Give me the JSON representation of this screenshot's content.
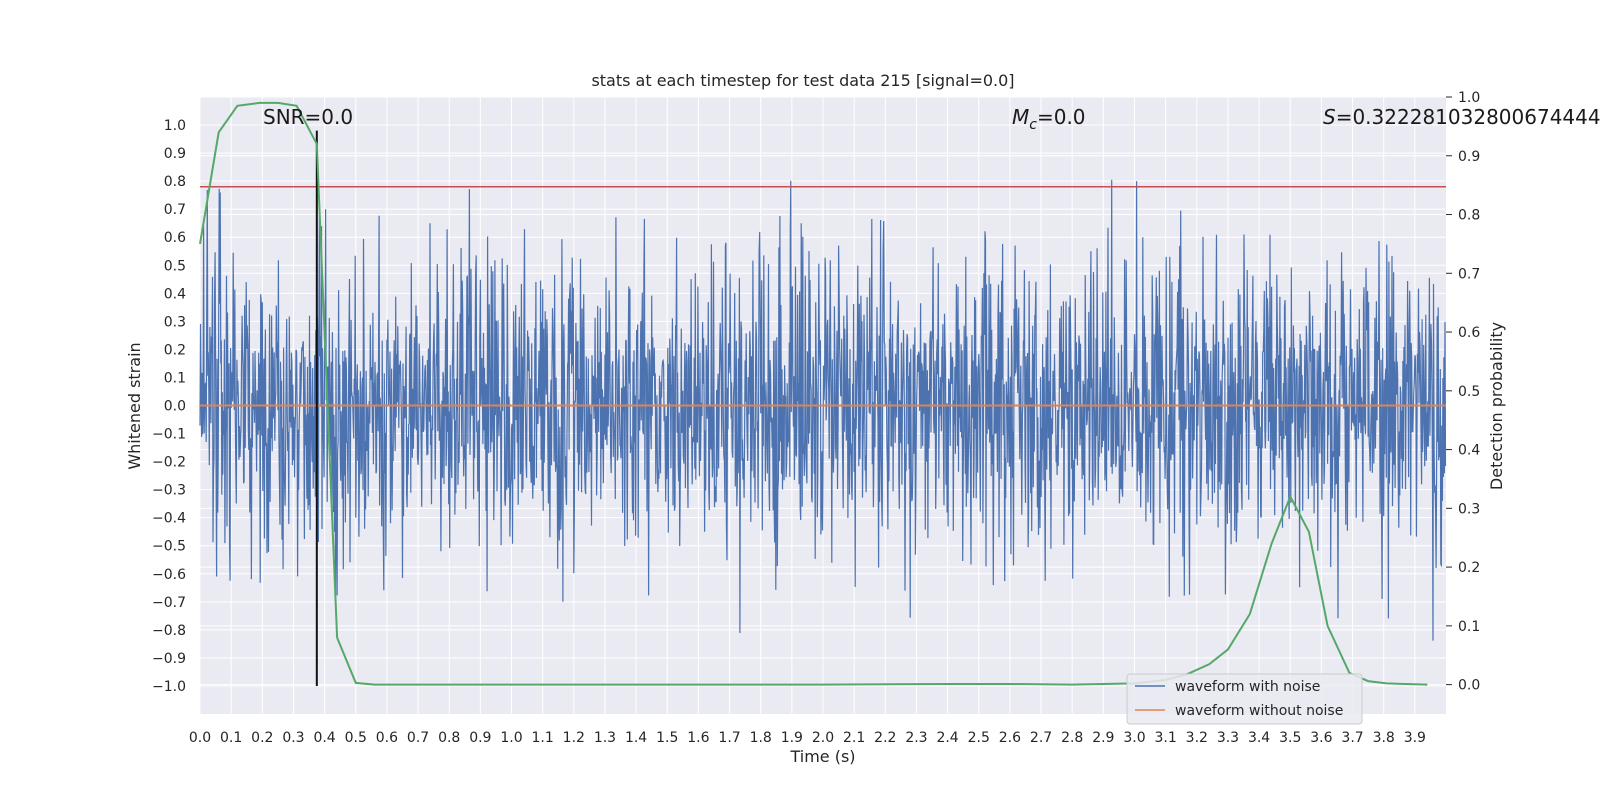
{
  "chart_data": {
    "type": "line",
    "title": "stats at each timestep for test data 215 [signal=0.0]",
    "xlabel": "Time (s)",
    "ylabel": "Whitened strain",
    "ylabel_right": "Detection probability",
    "xlim": [
      0.0,
      4.0
    ],
    "ylim": [
      -1.1,
      1.1
    ],
    "ylim_right": [
      -0.05,
      1.0
    ],
    "x_ticks": [
      "0.0",
      "0.1",
      "0.2",
      "0.3",
      "0.4",
      "0.5",
      "0.6",
      "0.7",
      "0.8",
      "0.9",
      "1.0",
      "1.1",
      "1.2",
      "1.3",
      "1.4",
      "1.5",
      "1.6",
      "1.7",
      "1.8",
      "1.9",
      "2.0",
      "2.1",
      "2.2",
      "2.3",
      "2.4",
      "2.5",
      "2.6",
      "2.7",
      "2.8",
      "2.9",
      "3.0",
      "3.1",
      "3.2",
      "3.3",
      "3.4",
      "3.5",
      "3.6",
      "3.7",
      "3.8",
      "3.9"
    ],
    "y_ticks": [
      "1.0",
      "0.9",
      "0.8",
      "0.7",
      "0.6",
      "0.5",
      "0.4",
      "0.3",
      "0.2",
      "0.1",
      "0.0",
      "−0.1",
      "−0.2",
      "−0.3",
      "−0.4",
      "−0.5",
      "−0.6",
      "−0.7",
      "−0.8",
      "−0.9",
      "−1.0"
    ],
    "y_ticks_right": [
      "1.0",
      "0.9",
      "0.8",
      "0.7",
      "0.6",
      "0.5",
      "0.4",
      "0.3",
      "0.2",
      "0.1",
      "0.0"
    ],
    "annotations": {
      "snr": "SNR=0.0",
      "mc_sym": "M",
      "mc_sub": "c",
      "mc_val": "=0.0",
      "s_sym": "S",
      "s_val": "=0.322281032800674444"
    },
    "series": [
      {
        "name": "waveform with noise",
        "color": "#4c72b0",
        "axis": "left",
        "note": "dense noise roughly within -0.85 to 0.98"
      },
      {
        "name": "waveform without noise",
        "color": "#dd8452",
        "axis": "left",
        "values_constant": 0.0
      },
      {
        "color": "#55a868",
        "axis": "right",
        "x": [
          0.0,
          0.06,
          0.12,
          0.19,
          0.25,
          0.31,
          0.375,
          0.44,
          0.5,
          0.56,
          0.62,
          1.0,
          1.5,
          2.0,
          2.4,
          2.6,
          2.8,
          3.0,
          3.1,
          3.17,
          3.24,
          3.3,
          3.37,
          3.44,
          3.5,
          3.56,
          3.62,
          3.69,
          3.75,
          3.81,
          3.87,
          3.94
        ],
        "values": [
          0.75,
          0.94,
          0.985,
          0.99,
          0.99,
          0.985,
          0.92,
          0.08,
          0.003,
          0.0,
          0.0,
          0.0,
          0.0,
          0.0,
          0.001,
          0.001,
          0.0,
          0.002,
          0.008,
          0.018,
          0.035,
          0.06,
          0.12,
          0.24,
          0.32,
          0.26,
          0.1,
          0.02,
          0.006,
          0.002,
          0.001,
          0.0
        ]
      }
    ],
    "hlines": [
      {
        "y": 0.78,
        "color": "#c44e52",
        "axis": "left"
      }
    ],
    "vlines": [
      {
        "x": 0.375,
        "y_from": -1.0,
        "y_to": 0.98,
        "color": "#111111"
      }
    ],
    "legend": {
      "placement": "lower-right",
      "items": [
        "waveform with noise",
        "waveform without noise"
      ]
    },
    "grid": true,
    "background": "#eaeaf2"
  }
}
